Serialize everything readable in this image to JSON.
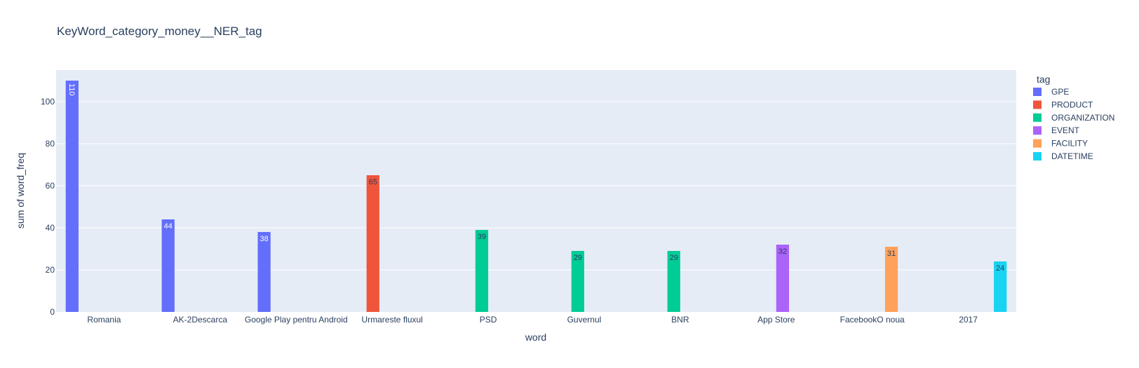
{
  "chart_data": {
    "type": "bar",
    "title": "KeyWord_category_money__NER_tag",
    "xlabel": "word",
    "ylabel": "sum of word_freq",
    "ylim": [
      0,
      115
    ],
    "yticks": [
      0,
      20,
      40,
      60,
      80,
      100
    ],
    "grid": true,
    "legend_title": "tag",
    "legend_position": "right",
    "categories": [
      "Romania",
      "AK-2Descarca",
      "Google Play pentru Android",
      "Urmareste fluxul",
      "PSD",
      "Guvernul",
      "BNR",
      "App Store",
      "FacebookO noua",
      "2017"
    ],
    "series": [
      {
        "name": "GPE",
        "color": "#636efa",
        "label_color": "#ffffff",
        "values": [
          110,
          44,
          38,
          null,
          null,
          null,
          null,
          null,
          null,
          null
        ]
      },
      {
        "name": "PRODUCT",
        "color": "#ef553b",
        "label_color": "#2a3f5f",
        "values": [
          null,
          null,
          null,
          65,
          null,
          null,
          null,
          null,
          null,
          null
        ]
      },
      {
        "name": "ORGANIZATION",
        "color": "#00cc96",
        "label_color": "#2a3f5f",
        "values": [
          null,
          null,
          null,
          null,
          39,
          29,
          29,
          null,
          null,
          null
        ]
      },
      {
        "name": "EVENT",
        "color": "#ab63fa",
        "label_color": "#2a3f5f",
        "values": [
          null,
          null,
          null,
          null,
          null,
          null,
          null,
          32,
          null,
          null
        ]
      },
      {
        "name": "FACILITY",
        "color": "#ffa15a",
        "label_color": "#2a3f5f",
        "values": [
          null,
          null,
          null,
          null,
          null,
          null,
          null,
          null,
          31,
          null
        ]
      },
      {
        "name": "DATETIME",
        "color": "#19d3f3",
        "label_color": "#2a3f5f",
        "values": [
          null,
          null,
          null,
          null,
          null,
          null,
          null,
          null,
          null,
          24
        ]
      }
    ]
  }
}
